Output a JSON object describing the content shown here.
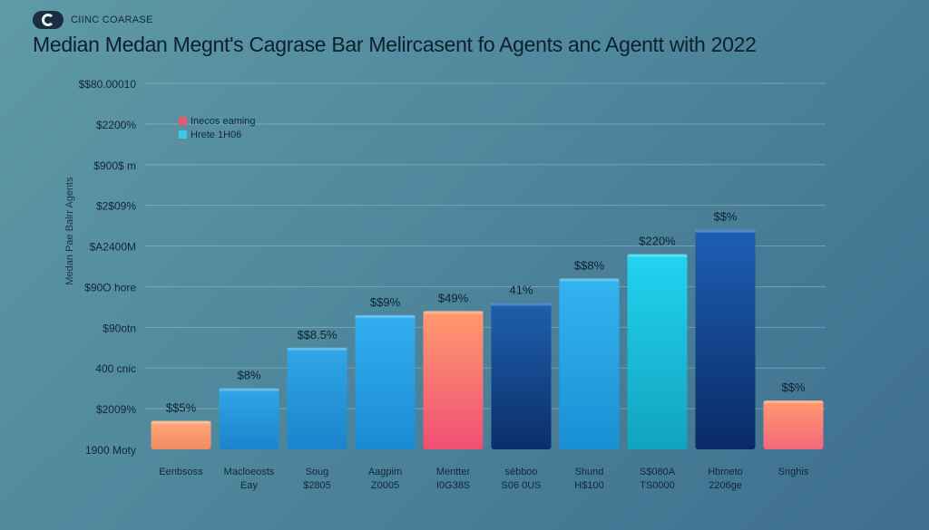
{
  "header": {
    "logo_text": "CIINC COARASE",
    "title": "Median Medan Megnt's Cagrase  Bar Melircasent fo Agents anc Agentt with 2022"
  },
  "chart_data": {
    "type": "bar",
    "title": "Median Medan Megnt's Cagrase  Bar Melircasent fo Agents anc Agentt with 2022",
    "ylabel": "Medan Pae Balrr Agents",
    "ylim": [
      0,
      10
    ],
    "y_ticks": [
      {
        "value": 0,
        "label": "1900 Moty"
      },
      {
        "value": 1,
        "label": "$2009%"
      },
      {
        "value": 2,
        "label": "400 cnic"
      },
      {
        "value": 3,
        "label": "$90otn"
      },
      {
        "value": 4,
        "label": "$90O hore"
      },
      {
        "value": 5,
        "label": "$A2400M"
      },
      {
        "value": 6,
        "label": "$2$09%"
      },
      {
        "value": 7,
        "label": "$900$ m"
      },
      {
        "value": 8,
        "label": "$2200%"
      },
      {
        "value": 9,
        "label": "$$80.00010"
      }
    ],
    "legend": {
      "position": "top-left",
      "entries": [
        {
          "label": "Inecos eaming",
          "color": "#e85a6e"
        },
        {
          "label": "Hrete 1H06",
          "color": "#3ec8e6"
        }
      ]
    },
    "categories": [
      {
        "name": "Eenbsoss",
        "sub": ""
      },
      {
        "name": "Macloeosts",
        "sub": "Eay"
      },
      {
        "name": "Soug",
        "sub": "$2805"
      },
      {
        "name": "Aagpim",
        "sub": "Z0005"
      },
      {
        "name": "Mentter",
        "sub": "I0G38S"
      },
      {
        "name": "sébboo",
        "sub": "S06 0US"
      },
      {
        "name": "Shund",
        "sub": "H$100"
      },
      {
        "name": "S$080A",
        "sub": "TS0000"
      },
      {
        "name": "Hbmeto",
        "sub": "2206ge"
      },
      {
        "name": "Snghis",
        "sub": ""
      }
    ],
    "values": [
      0.7,
      1.5,
      2.5,
      3.3,
      3.4,
      3.6,
      4.2,
      4.8,
      5.4,
      1.2
    ],
    "value_labels": [
      "$$5%",
      "$8%",
      "$$8.5%",
      "$$9%",
      "$49%",
      "41%",
      "$$8%",
      "$220%",
      "$$%",
      "$$%"
    ],
    "colors": [
      [
        "#ffa77a",
        "#f28b62"
      ],
      [
        "#31a6e8",
        "#1a84cc"
      ],
      [
        "#31a6e8",
        "#1a84cc"
      ],
      [
        "#33aef0",
        "#1a8bd2"
      ],
      [
        "#ff9a6e",
        "#f04e74"
      ],
      [
        "#1e5fae",
        "#0c2f6a"
      ],
      [
        "#34b4f0",
        "#1a8fd4"
      ],
      [
        "#22d3f0",
        "#12a3be"
      ],
      [
        "#1d5fb4",
        "#0a2a66"
      ],
      [
        "#ff9a6e",
        "#f3687a"
      ]
    ]
  }
}
